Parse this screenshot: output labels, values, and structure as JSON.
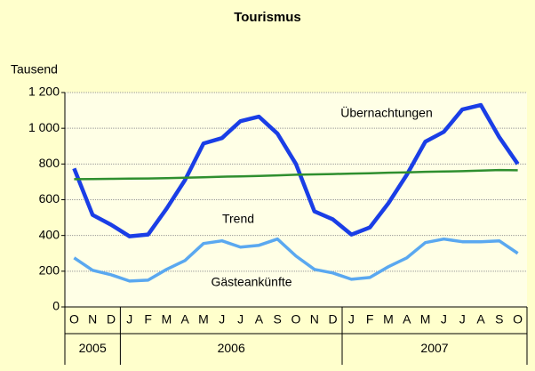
{
  "chart_data": {
    "type": "line",
    "title": "Tourismus",
    "y_label": "Tausend",
    "categories": [
      "O",
      "N",
      "D",
      "J",
      "F",
      "M",
      "A",
      "M",
      "J",
      "J",
      "A",
      "S",
      "O",
      "N",
      "D",
      "J",
      "F",
      "M",
      "A",
      "M",
      "J",
      "J",
      "A",
      "S",
      "O"
    ],
    "category_years": [
      "2005",
      "2005",
      "2005",
      "2006",
      "2006",
      "2006",
      "2006",
      "2006",
      "2006",
      "2006",
      "2006",
      "2006",
      "2006",
      "2006",
      "2006",
      "2007",
      "2007",
      "2007",
      "2007",
      "2007",
      "2007",
      "2007",
      "2007",
      "2007",
      "2007"
    ],
    "series": [
      {
        "name": "Übernachtungen",
        "color": "#1a3ee6",
        "values": [
          775,
          515,
          460,
          395,
          405,
          550,
          710,
          915,
          945,
          1040,
          1065,
          970,
          800,
          535,
          490,
          405,
          445,
          580,
          740,
          925,
          980,
          1105,
          1130,
          950,
          800
        ]
      },
      {
        "name": "Trend",
        "color": "#2f8f2f",
        "values": [
          715,
          716,
          717,
          718,
          719,
          721,
          723,
          726,
          729,
          731,
          733,
          736,
          740,
          742,
          744,
          746,
          748,
          751,
          753,
          756,
          758,
          760,
          763,
          766,
          765
        ]
      },
      {
        "name": "Gästeankünfte",
        "color": "#5aa8f0",
        "values": [
          275,
          205,
          180,
          145,
          150,
          210,
          260,
          355,
          370,
          335,
          345,
          380,
          285,
          210,
          190,
          155,
          165,
          225,
          275,
          360,
          380,
          365,
          365,
          370,
          300
        ]
      }
    ],
    "ylim": [
      0,
      1200
    ],
    "yticks": [
      0,
      200,
      400,
      600,
      800,
      {
        "value": 1000,
        "label": "1 000"
      },
      {
        "value": 1200,
        "label": "1 200"
      }
    ],
    "grid": true
  }
}
